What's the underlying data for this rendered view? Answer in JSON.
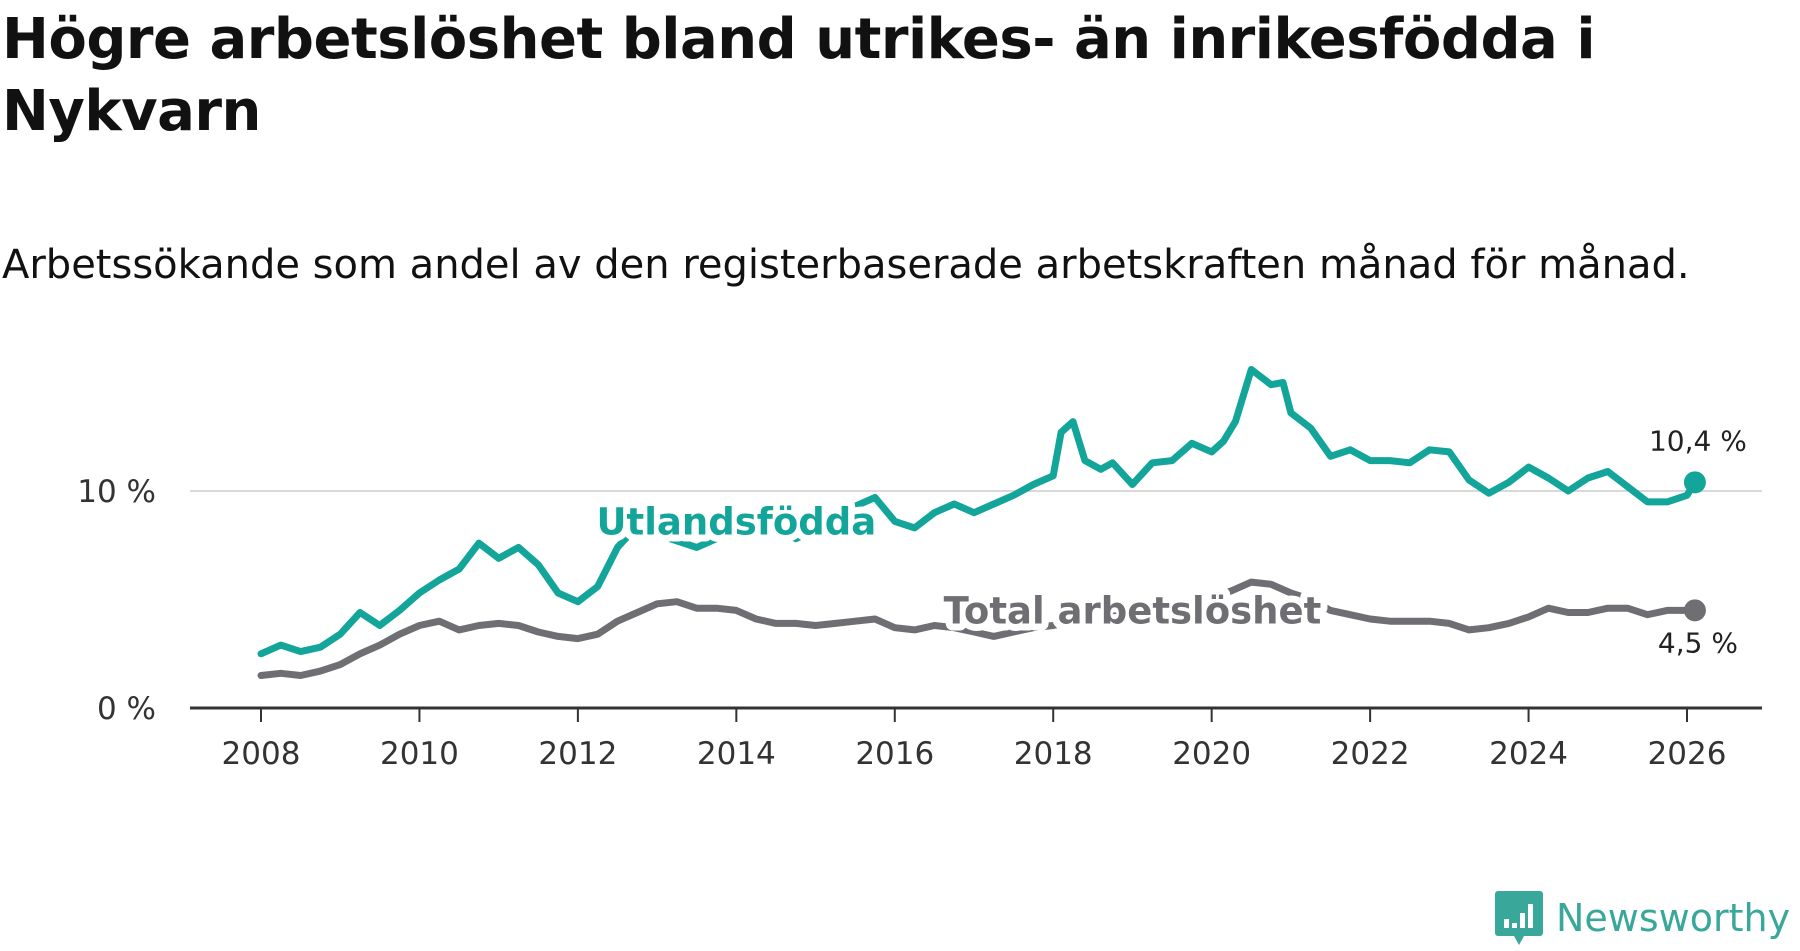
{
  "chart_data": {
    "type": "line",
    "title": "Högre arbetslöshet bland utrikes- än inrikesfödda i Nykvarn",
    "subtitle": "Arbetssökande som andel av den registerbaserade arbetskraften månad för månad.",
    "xlabel": "",
    "ylabel": "",
    "xlim": [
      2007.1,
      2027.0
    ],
    "ylim": [
      0,
      15
    ],
    "x_ticks": [
      2008,
      2010,
      2012,
      2014,
      2016,
      2018,
      2020,
      2022,
      2024,
      2026
    ],
    "x_tick_labels": [
      "2008",
      "2010",
      "2012",
      "2014",
      "2016",
      "2018",
      "2020",
      "2022",
      "2024",
      "2026"
    ],
    "y_ticks": [
      0,
      10
    ],
    "y_tick_labels": [
      "0 %",
      "10 %"
    ],
    "grid": "horizontal",
    "series": [
      {
        "name": "Utlandsfödda",
        "label": "Utlandsfödda",
        "color": "#13a59a",
        "end_label": "10,4 %",
        "label_x": 2014.0,
        "label_y": 8.6,
        "points": [
          [
            2008.0,
            2.5
          ],
          [
            2008.25,
            2.9
          ],
          [
            2008.5,
            2.6
          ],
          [
            2008.75,
            2.8
          ],
          [
            2009.0,
            3.4
          ],
          [
            2009.25,
            4.4
          ],
          [
            2009.5,
            3.8
          ],
          [
            2009.75,
            4.5
          ],
          [
            2010.0,
            5.3
          ],
          [
            2010.25,
            5.9
          ],
          [
            2010.5,
            6.4
          ],
          [
            2010.75,
            7.6
          ],
          [
            2011.0,
            6.9
          ],
          [
            2011.25,
            7.4
          ],
          [
            2011.5,
            6.6
          ],
          [
            2011.75,
            5.3
          ],
          [
            2012.0,
            4.9
          ],
          [
            2012.25,
            5.6
          ],
          [
            2012.5,
            7.4
          ],
          [
            2012.75,
            8.4
          ],
          [
            2013.0,
            8.0
          ],
          [
            2013.25,
            7.7
          ],
          [
            2013.5,
            7.4
          ],
          [
            2013.75,
            7.8
          ],
          [
            2014.0,
            8.1
          ],
          [
            2014.25,
            8.5
          ],
          [
            2014.5,
            8.3
          ],
          [
            2014.75,
            7.8
          ],
          [
            2015.0,
            8.2
          ],
          [
            2015.25,
            8.8
          ],
          [
            2015.5,
            9.3
          ],
          [
            2015.75,
            9.7
          ],
          [
            2016.0,
            8.6
          ],
          [
            2016.25,
            8.3
          ],
          [
            2016.5,
            9.0
          ],
          [
            2016.75,
            9.4
          ],
          [
            2017.0,
            9.0
          ],
          [
            2017.25,
            9.4
          ],
          [
            2017.5,
            9.8
          ],
          [
            2017.75,
            10.3
          ],
          [
            2018.0,
            10.7
          ],
          [
            2018.1,
            12.7
          ],
          [
            2018.25,
            13.2
          ],
          [
            2018.4,
            11.4
          ],
          [
            2018.6,
            11.0
          ],
          [
            2018.75,
            11.3
          ],
          [
            2019.0,
            10.3
          ],
          [
            2019.25,
            11.3
          ],
          [
            2019.5,
            11.4
          ],
          [
            2019.75,
            12.2
          ],
          [
            2020.0,
            11.8
          ],
          [
            2020.15,
            12.3
          ],
          [
            2020.3,
            13.2
          ],
          [
            2020.5,
            15.6
          ],
          [
            2020.75,
            14.9
          ],
          [
            2020.9,
            15.0
          ],
          [
            2021.0,
            13.6
          ],
          [
            2021.25,
            12.9
          ],
          [
            2021.5,
            11.6
          ],
          [
            2021.75,
            11.9
          ],
          [
            2022.0,
            11.4
          ],
          [
            2022.25,
            11.4
          ],
          [
            2022.5,
            11.3
          ],
          [
            2022.75,
            11.9
          ],
          [
            2023.0,
            11.8
          ],
          [
            2023.25,
            10.5
          ],
          [
            2023.5,
            9.9
          ],
          [
            2023.75,
            10.4
          ],
          [
            2024.0,
            11.1
          ],
          [
            2024.25,
            10.6
          ],
          [
            2024.5,
            10.0
          ],
          [
            2024.75,
            10.6
          ],
          [
            2025.0,
            10.9
          ],
          [
            2025.25,
            10.2
          ],
          [
            2025.5,
            9.5
          ],
          [
            2025.75,
            9.5
          ],
          [
            2026.0,
            9.8
          ],
          [
            2026.1,
            10.4
          ]
        ]
      },
      {
        "name": "Total arbetslöshet",
        "label": "Total arbetslöshet",
        "color": "#6f6e73",
        "end_label": "4,5 %",
        "label_x": 2019.0,
        "label_y": 4.5,
        "points": [
          [
            2008.0,
            1.5
          ],
          [
            2008.25,
            1.6
          ],
          [
            2008.5,
            1.5
          ],
          [
            2008.75,
            1.7
          ],
          [
            2009.0,
            2.0
          ],
          [
            2009.25,
            2.5
          ],
          [
            2009.5,
            2.9
          ],
          [
            2009.75,
            3.4
          ],
          [
            2010.0,
            3.8
          ],
          [
            2010.25,
            4.0
          ],
          [
            2010.5,
            3.6
          ],
          [
            2010.75,
            3.8
          ],
          [
            2011.0,
            3.9
          ],
          [
            2011.25,
            3.8
          ],
          [
            2011.5,
            3.5
          ],
          [
            2011.75,
            3.3
          ],
          [
            2012.0,
            3.2
          ],
          [
            2012.25,
            3.4
          ],
          [
            2012.5,
            4.0
          ],
          [
            2012.75,
            4.4
          ],
          [
            2013.0,
            4.8
          ],
          [
            2013.25,
            4.9
          ],
          [
            2013.5,
            4.6
          ],
          [
            2013.75,
            4.6
          ],
          [
            2014.0,
            4.5
          ],
          [
            2014.25,
            4.1
          ],
          [
            2014.5,
            3.9
          ],
          [
            2014.75,
            3.9
          ],
          [
            2015.0,
            3.8
          ],
          [
            2015.25,
            3.9
          ],
          [
            2015.5,
            4.0
          ],
          [
            2015.75,
            4.1
          ],
          [
            2016.0,
            3.7
          ],
          [
            2016.25,
            3.6
          ],
          [
            2016.5,
            3.8
          ],
          [
            2016.75,
            3.7
          ],
          [
            2017.0,
            3.5
          ],
          [
            2017.25,
            3.3
          ],
          [
            2017.5,
            3.5
          ],
          [
            2017.75,
            3.7
          ],
          [
            2018.0,
            3.8
          ],
          [
            2018.25,
            4.0
          ],
          [
            2018.5,
            4.1
          ],
          [
            2018.75,
            4.3
          ],
          [
            2019.0,
            4.4
          ],
          [
            2019.25,
            4.6
          ],
          [
            2019.5,
            4.7
          ],
          [
            2019.75,
            4.9
          ],
          [
            2020.0,
            5.1
          ],
          [
            2020.25,
            5.4
          ],
          [
            2020.5,
            5.8
          ],
          [
            2020.75,
            5.7
          ],
          [
            2021.0,
            5.3
          ],
          [
            2021.25,
            5.0
          ],
          [
            2021.5,
            4.5
          ],
          [
            2021.75,
            4.3
          ],
          [
            2022.0,
            4.1
          ],
          [
            2022.25,
            4.0
          ],
          [
            2022.5,
            4.0
          ],
          [
            2022.75,
            4.0
          ],
          [
            2023.0,
            3.9
          ],
          [
            2023.25,
            3.6
          ],
          [
            2023.5,
            3.7
          ],
          [
            2023.75,
            3.9
          ],
          [
            2024.0,
            4.2
          ],
          [
            2024.25,
            4.6
          ],
          [
            2024.5,
            4.4
          ],
          [
            2024.75,
            4.4
          ],
          [
            2025.0,
            4.6
          ],
          [
            2025.25,
            4.6
          ],
          [
            2025.5,
            4.3
          ],
          [
            2025.75,
            4.5
          ],
          [
            2026.0,
            4.5
          ],
          [
            2026.1,
            4.5
          ]
        ]
      }
    ]
  },
  "branding": {
    "logo_text": "Newsworthy",
    "logo_icon": "bar-chart-speech-bubble-icon",
    "color": "#3aa79b"
  }
}
